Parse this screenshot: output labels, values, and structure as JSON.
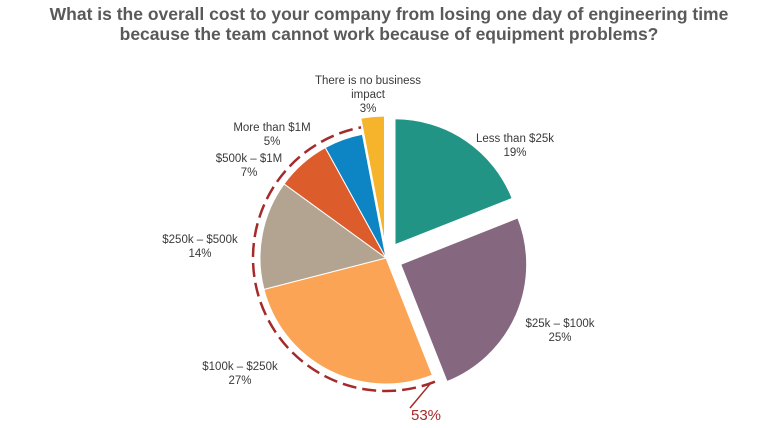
{
  "chart_data": {
    "type": "pie",
    "title": [
      "What is the overall cost to your company from losing one day of engineering time",
      "because the team cannot work because of equipment problems?"
    ],
    "slices": [
      {
        "label": [
          "Less than $25k"
        ],
        "value": 19,
        "value_label": "19%",
        "color": "#229485",
        "exploded": true
      },
      {
        "label": [
          "$25k – $100k"
        ],
        "value": 25,
        "value_label": "25%",
        "color": "#85677f",
        "exploded": true
      },
      {
        "label": [
          "$100k – $250k"
        ],
        "value": 27,
        "value_label": "27%",
        "color": "#fba455",
        "exploded": false
      },
      {
        "label": [
          "$250k – $500k"
        ],
        "value": 14,
        "value_label": "14%",
        "color": "#b2a491",
        "exploded": false
      },
      {
        "label": [
          "$500k – $1M"
        ],
        "value": 7,
        "value_label": "7%",
        "color": "#dd5c2c",
        "exploded": false
      },
      {
        "label": [
          "More than $1M"
        ],
        "value": 5,
        "value_label": "5%",
        "color": "#0d84c4",
        "exploded": false
      },
      {
        "label": [
          "There is no business",
          "impact"
        ],
        "value": 3,
        "value_label": "3%",
        "color": "#f6b42c",
        "exploded": true
      }
    ],
    "group_annotation": {
      "label": "53%",
      "color": "#a52a2a"
    },
    "legend": "none"
  }
}
